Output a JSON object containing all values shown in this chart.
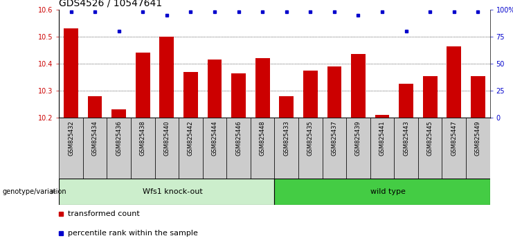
{
  "title": "GDS4526 / 10547641",
  "samples": [
    "GSM825432",
    "GSM825434",
    "GSM825436",
    "GSM825438",
    "GSM825440",
    "GSM825442",
    "GSM825444",
    "GSM825446",
    "GSM825448",
    "GSM825433",
    "GSM825435",
    "GSM825437",
    "GSM825439",
    "GSM825441",
    "GSM825443",
    "GSM825445",
    "GSM825447",
    "GSM825449"
  ],
  "bar_values": [
    10.53,
    10.28,
    10.23,
    10.44,
    10.5,
    10.37,
    10.415,
    10.365,
    10.42,
    10.28,
    10.375,
    10.39,
    10.435,
    10.21,
    10.325,
    10.355,
    10.465,
    10.355
  ],
  "percentile_values": [
    98,
    98,
    80,
    98,
    95,
    98,
    98,
    98,
    98,
    98,
    98,
    98,
    95,
    98,
    80,
    98,
    98,
    98
  ],
  "bar_color": "#cc0000",
  "percentile_color": "#0000cc",
  "ylim_left": [
    10.2,
    10.6
  ],
  "ylim_right": [
    0,
    100
  ],
  "yticks_left": [
    10.2,
    10.3,
    10.4,
    10.5,
    10.6
  ],
  "yticks_right": [
    0,
    25,
    50,
    75,
    100
  ],
  "ytick_labels_right": [
    "0",
    "25",
    "50",
    "75",
    "100%"
  ],
  "grid_lines": [
    10.3,
    10.4,
    10.5
  ],
  "group1_label": "Wfs1 knock-out",
  "group2_label": "wild type",
  "group1_count": 9,
  "group2_count": 9,
  "group1_color": "#cceecc",
  "group2_color": "#44cc44",
  "genotype_label": "genotype/variation",
  "legend_bar_label": "transformed count",
  "legend_pct_label": "percentile rank within the sample",
  "plot_bg_color": "#ffffff",
  "xtick_bg_color": "#cccccc",
  "title_fontsize": 10,
  "tick_fontsize": 7,
  "xtick_fontsize": 6,
  "label_fontsize": 8
}
